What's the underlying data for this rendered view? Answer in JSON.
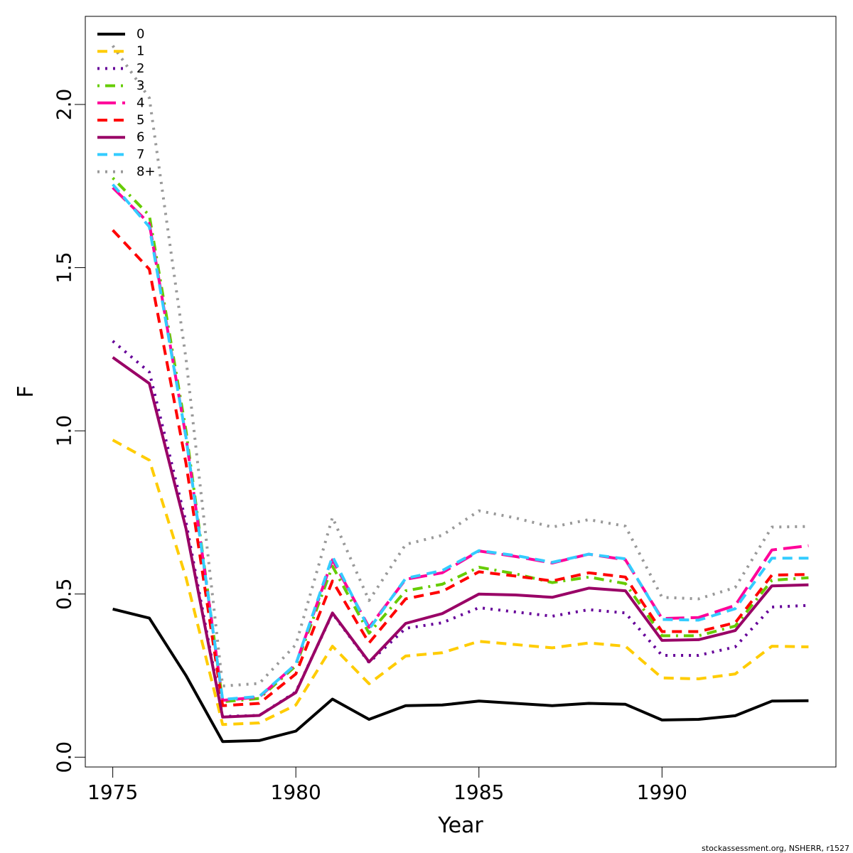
{
  "chart_data": {
    "type": "line",
    "title": "",
    "xlabel": "Year",
    "ylabel": "F",
    "xlim": [
      1974.25,
      1994.75
    ],
    "ylim": [
      -0.03,
      2.27
    ],
    "xticks": [
      1975,
      1980,
      1985,
      1990
    ],
    "yticks": [
      0.0,
      0.5,
      1.0,
      1.5,
      2.0
    ],
    "xtick_labels": [
      "1975",
      "1980",
      "1985",
      "1990"
    ],
    "ytick_labels": [
      "0.0",
      "0.5",
      "1.0",
      "1.5",
      "2.0"
    ],
    "grid": false,
    "legend_position": "top-left",
    "x": [
      1975,
      1976,
      1977,
      1978,
      1979,
      1980,
      1981,
      1982,
      1983,
      1984,
      1985,
      1986,
      1987,
      1988,
      1989,
      1990,
      1991,
      1992,
      1993,
      1994
    ],
    "series": [
      {
        "name": "0",
        "color": "#000000",
        "dash": "solid",
        "values": [
          0.454,
          0.426,
          0.25,
          0.048,
          0.051,
          0.08,
          0.178,
          0.116,
          0.158,
          0.16,
          0.172,
          0.165,
          0.158,
          0.165,
          0.162,
          0.114,
          0.116,
          0.127,
          0.172,
          0.173
        ]
      },
      {
        "name": "1",
        "color": "#FFCC00",
        "dash": "dashed",
        "values": [
          0.972,
          0.91,
          0.55,
          0.1,
          0.105,
          0.16,
          0.34,
          0.225,
          0.31,
          0.32,
          0.355,
          0.345,
          0.335,
          0.35,
          0.34,
          0.243,
          0.24,
          0.255,
          0.34,
          0.338
        ]
      },
      {
        "name": "2",
        "color": "#660099",
        "dash": "dotted",
        "values": [
          1.275,
          1.18,
          0.72,
          0.125,
          0.128,
          0.2,
          0.44,
          0.29,
          0.395,
          0.412,
          0.458,
          0.445,
          0.432,
          0.452,
          0.442,
          0.312,
          0.312,
          0.338,
          0.46,
          0.465
        ]
      },
      {
        "name": "3",
        "color": "#66CC00",
        "dash": "dotdash",
        "values": [
          1.775,
          1.66,
          1.0,
          0.17,
          0.18,
          0.28,
          0.585,
          0.38,
          0.51,
          0.53,
          0.582,
          0.562,
          0.535,
          0.552,
          0.532,
          0.372,
          0.372,
          0.402,
          0.542,
          0.55
        ]
      },
      {
        "name": "4",
        "color": "#FF0099",
        "dash": "longdash",
        "values": [
          1.745,
          1.635,
          0.98,
          0.174,
          0.184,
          0.285,
          0.605,
          0.398,
          0.545,
          0.565,
          0.632,
          0.615,
          0.595,
          0.622,
          0.605,
          0.425,
          0.428,
          0.465,
          0.635,
          0.648
        ]
      },
      {
        "name": "5",
        "color": "#FF0000",
        "dash": "dashed",
        "values": [
          1.615,
          1.495,
          0.9,
          0.158,
          0.165,
          0.255,
          0.54,
          0.35,
          0.485,
          0.508,
          0.568,
          0.555,
          0.54,
          0.565,
          0.552,
          0.385,
          0.385,
          0.412,
          0.558,
          0.56
        ]
      },
      {
        "name": "6",
        "color": "#990066",
        "dash": "solid",
        "values": [
          1.225,
          1.145,
          0.7,
          0.123,
          0.128,
          0.198,
          0.442,
          0.292,
          0.41,
          0.44,
          0.5,
          0.497,
          0.49,
          0.518,
          0.51,
          0.358,
          0.36,
          0.388,
          0.525,
          0.528
        ]
      },
      {
        "name": "7",
        "color": "#33CCFF",
        "dash": "dashed",
        "values": [
          1.755,
          1.625,
          0.98,
          0.177,
          0.186,
          0.285,
          0.615,
          0.392,
          0.548,
          0.572,
          0.633,
          0.618,
          0.597,
          0.622,
          0.608,
          0.422,
          0.42,
          0.455,
          0.61,
          0.61
        ]
      },
      {
        "name": "8+",
        "color": "#999999",
        "dash": "dotted",
        "values": [
          2.18,
          2.02,
          1.22,
          0.218,
          0.226,
          0.345,
          0.735,
          0.48,
          0.652,
          0.68,
          0.755,
          0.733,
          0.705,
          0.728,
          0.708,
          0.49,
          0.485,
          0.52,
          0.705,
          0.707
        ]
      }
    ]
  },
  "credit": "stockassessment.org, NSHERR, r1527"
}
